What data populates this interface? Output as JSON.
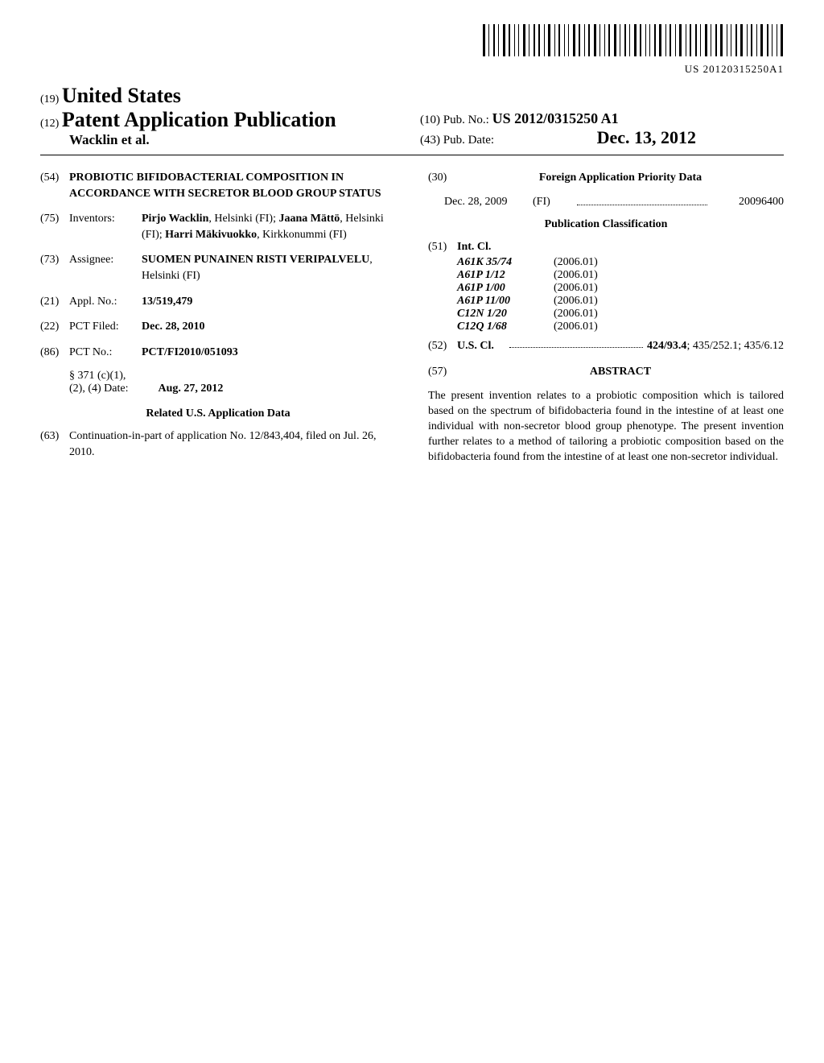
{
  "barcode": {
    "text": "US 20120315250A1"
  },
  "header": {
    "code19": "(19)",
    "country": "United States",
    "code12": "(12)",
    "pub_type": "Patent Application Publication",
    "authors_line": "Wacklin et al.",
    "code10": "(10)",
    "pub_no_label": "Pub. No.:",
    "pub_no": "US 2012/0315250 A1",
    "code43": "(43)",
    "pub_date_label": "Pub. Date:",
    "pub_date": "Dec. 13, 2012"
  },
  "left_col": {
    "title": {
      "code": "(54)",
      "text": "PROBIOTIC BIFIDOBACTERIAL COMPOSITION IN ACCORDANCE WITH SECRETOR BLOOD GROUP STATUS"
    },
    "inventors": {
      "code": "(75)",
      "label": "Inventors:",
      "value": "Pirjo Wacklin, Helsinki (FI); Jaana Mättö, Helsinki (FI); Harri Mäkivuokko, Kirkkonummi (FI)"
    },
    "assignee": {
      "code": "(73)",
      "label": "Assignee:",
      "value": "SUOMEN PUNAINEN RISTI VERIPALVELU, Helsinki (FI)"
    },
    "appl_no": {
      "code": "(21)",
      "label": "Appl. No.:",
      "value": "13/519,479"
    },
    "pct_filed": {
      "code": "(22)",
      "label": "PCT Filed:",
      "value": "Dec. 28, 2010"
    },
    "pct_no": {
      "code": "(86)",
      "label": "PCT No.:",
      "value": "PCT/FI2010/051093"
    },
    "section371": {
      "line1": "§ 371 (c)(1),",
      "line2_label": "(2), (4) Date:",
      "line2_value": "Aug. 27, 2012"
    },
    "related_heading": "Related U.S. Application Data",
    "continuation": {
      "code": "(63)",
      "text": "Continuation-in-part of application No. 12/843,404, filed on Jul. 26, 2010."
    }
  },
  "right_col": {
    "foreign_priority": {
      "code": "(30)",
      "heading": "Foreign Application Priority Data",
      "date": "Dec. 28, 2009",
      "country": "(FI)",
      "number": "20096400"
    },
    "pub_classification_heading": "Publication Classification",
    "int_cl": {
      "code": "(51)",
      "label": "Int. Cl.",
      "items": [
        {
          "code": "A61K 35/74",
          "year": "(2006.01)"
        },
        {
          "code": "A61P 1/12",
          "year": "(2006.01)"
        },
        {
          "code": "A61P 1/00",
          "year": "(2006.01)"
        },
        {
          "code": "A61P 11/00",
          "year": "(2006.01)"
        },
        {
          "code": "C12N 1/20",
          "year": "(2006.01)"
        },
        {
          "code": "C12Q 1/68",
          "year": "(2006.01)"
        }
      ]
    },
    "us_cl": {
      "code": "(52)",
      "label": "U.S. Cl.",
      "value_bold": "424/93.4",
      "value_rest": "; 435/252.1; 435/6.12"
    },
    "abstract": {
      "code": "(57)",
      "heading": "ABSTRACT",
      "text": "The present invention relates to a probiotic composition which is tailored based on the spectrum of bifidobacteria found in the intestine of at least one individual with non-secretor blood group phenotype. The present invention further relates to a method of tailoring a probiotic composition based on the bifidobacteria found from the intestine of at least one non-secretor individual."
    }
  }
}
